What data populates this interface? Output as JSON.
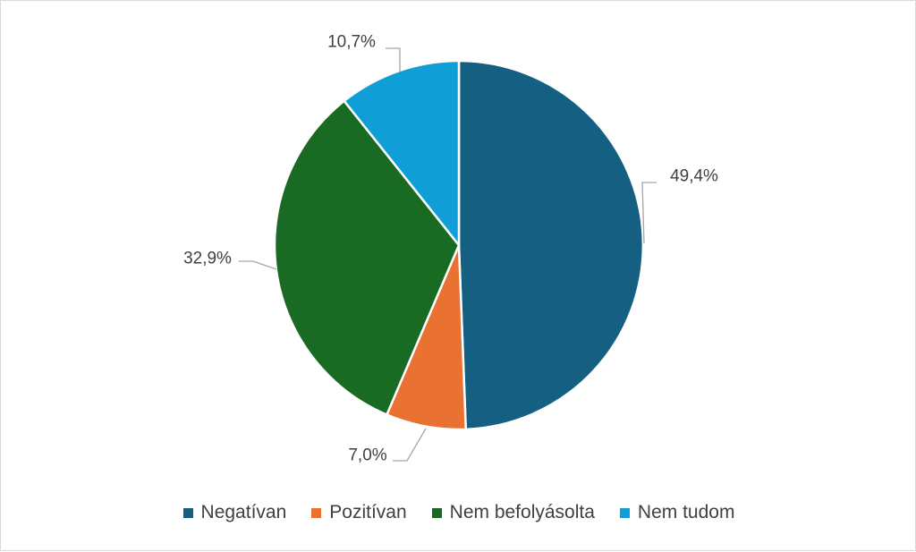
{
  "chart_data": {
    "type": "pie",
    "title": "",
    "start_angle_deg": 0,
    "direction": "clockwise",
    "categories": [
      "Negatívan",
      "Pozitívan",
      "Nem befolyásolta",
      "Nem tudom"
    ],
    "values": [
      49.4,
      7.0,
      32.9,
      10.7
    ],
    "data_labels": [
      "49,4%",
      "7,0%",
      "32,9%",
      "10,7%"
    ],
    "colors": [
      "#156082",
      "#E97132",
      "#196B24",
      "#0F9ED5"
    ],
    "legend_position": "bottom"
  }
}
